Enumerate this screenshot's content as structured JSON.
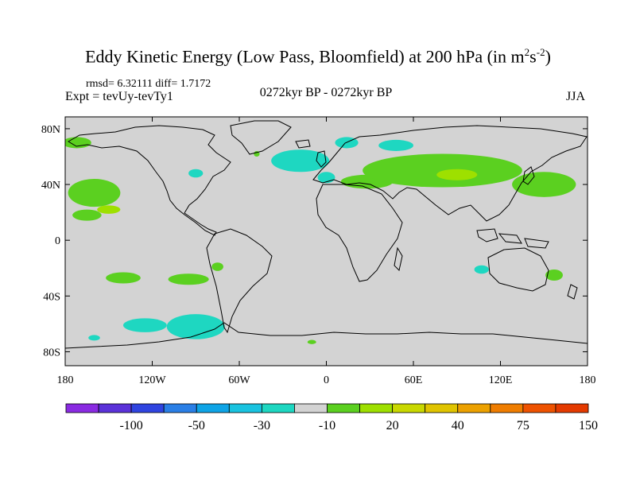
{
  "title": {
    "main": "Eddy Kinetic Energy (Low Pass, Bloomfield) at 200 hPa (in m",
    "sup1": "2",
    "mid": "s",
    "sup2": "-2",
    "close": ")"
  },
  "stats": "rmsd= 6.32111 diff= 1.7172",
  "experiment": "Expt = tevUy-tevTy1",
  "period": "0272kyr BP - 0272kyr BP",
  "season": "JJA",
  "map": {
    "background_color": "#d3d3d3",
    "lat_ticks": [
      {
        "lat": 80,
        "label": "80N"
      },
      {
        "lat": 40,
        "label": "40N"
      },
      {
        "lat": 0,
        "label": "0"
      },
      {
        "lat": -40,
        "label": "40S"
      },
      {
        "lat": -80,
        "label": "80S"
      }
    ],
    "lon_ticks": [
      {
        "lon": -180,
        "label": "180"
      },
      {
        "lon": -120,
        "label": "120W"
      },
      {
        "lon": -60,
        "label": "60W"
      },
      {
        "lon": 0,
        "label": "0"
      },
      {
        "lon": 60,
        "label": "60E"
      },
      {
        "lon": 120,
        "label": "120E"
      },
      {
        "lon": 180,
        "label": "180"
      }
    ],
    "anomaly_regions": [
      {
        "lon": -172,
        "lat": 70,
        "rlon": 10,
        "rlat": 4,
        "color": "#5bd020"
      },
      {
        "lon": -160,
        "lat": 34,
        "rlon": 18,
        "rlat": 10,
        "color": "#5bd020"
      },
      {
        "lon": -150,
        "lat": 22,
        "rlon": 8,
        "rlat": 3,
        "color": "#9ee000"
      },
      {
        "lon": -165,
        "lat": 18,
        "rlon": 10,
        "rlat": 4,
        "color": "#5bd020"
      },
      {
        "lon": -90,
        "lat": 48,
        "rlon": 5,
        "rlat": 3,
        "color": "#1ed7c1"
      },
      {
        "lon": -48,
        "lat": 62,
        "rlon": 2,
        "rlat": 2,
        "color": "#5bd020"
      },
      {
        "lon": -18,
        "lat": 57,
        "rlon": 20,
        "rlat": 8,
        "color": "#1ed7c1"
      },
      {
        "lon": 0,
        "lat": 45,
        "rlon": 6,
        "rlat": 4,
        "color": "#1ed7c1"
      },
      {
        "lon": 14,
        "lat": 70,
        "rlon": 8,
        "rlat": 4,
        "color": "#1ed7c1"
      },
      {
        "lon": 48,
        "lat": 68,
        "rlon": 12,
        "rlat": 4,
        "color": "#1ed7c1"
      },
      {
        "lon": 28,
        "lat": 42,
        "rlon": 18,
        "rlat": 5,
        "color": "#5bd020"
      },
      {
        "lon": 80,
        "lat": 50,
        "rlon": 55,
        "rlat": 12,
        "color": "#5bd020"
      },
      {
        "lon": 90,
        "lat": 47,
        "rlon": 14,
        "rlat": 4,
        "color": "#9ee000"
      },
      {
        "lon": 150,
        "lat": 40,
        "rlon": 22,
        "rlat": 9,
        "color": "#5bd020"
      },
      {
        "lon": -140,
        "lat": -27,
        "rlon": 12,
        "rlat": 4,
        "color": "#5bd020"
      },
      {
        "lon": -95,
        "lat": -28,
        "rlon": 14,
        "rlat": 4,
        "color": "#5bd020"
      },
      {
        "lon": -75,
        "lat": -19,
        "rlon": 4,
        "rlat": 3,
        "color": "#5bd020"
      },
      {
        "lon": -125,
        "lat": -61,
        "rlon": 15,
        "rlat": 5,
        "color": "#1ed7c1"
      },
      {
        "lon": -90,
        "lat": -62,
        "rlon": 20,
        "rlat": 9,
        "color": "#1ed7c1"
      },
      {
        "lon": -160,
        "lat": -70,
        "rlon": 4,
        "rlat": 2,
        "color": "#1ed7c1"
      },
      {
        "lon": -10,
        "lat": -73,
        "rlon": 3,
        "rlat": 1.5,
        "color": "#5bd020"
      },
      {
        "lon": 107,
        "lat": -21,
        "rlon": 5,
        "rlat": 3,
        "color": "#1ed7c1"
      },
      {
        "lon": 157,
        "lat": -25,
        "rlon": 6,
        "rlat": 4,
        "color": "#5bd020"
      }
    ]
  },
  "colorbar": {
    "colors": [
      "#8a2be2",
      "#5b32d9",
      "#2f44e0",
      "#2a7fe6",
      "#0ea4e6",
      "#19c3e0",
      "#1ed7c1",
      "#d3d3d3",
      "#5bd020",
      "#9ee000",
      "#c9d800",
      "#e0c400",
      "#eca100",
      "#ef7d00",
      "#ee5200",
      "#e43a00"
    ],
    "labels": [
      {
        "after": 1,
        "text": "-100"
      },
      {
        "after": 3,
        "text": "-50"
      },
      {
        "after": 5,
        "text": "-30"
      },
      {
        "after": 7,
        "text": "-10"
      },
      {
        "after": 9,
        "text": "20"
      },
      {
        "after": 11,
        "text": "40"
      },
      {
        "after": 13,
        "text": "75"
      },
      {
        "after": 15,
        "text": "150"
      }
    ]
  }
}
